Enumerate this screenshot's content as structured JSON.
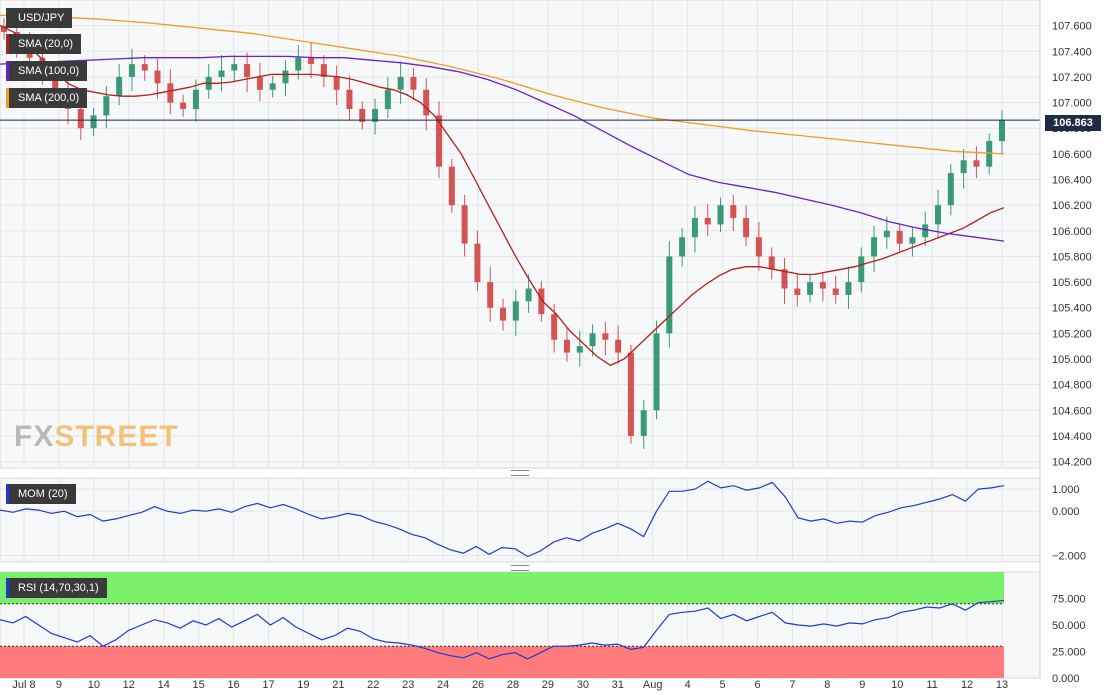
{
  "logo": {
    "fx": "FX",
    "street": "STREET"
  },
  "main_panel": {
    "labels": [
      {
        "text": "USD/JPY",
        "color": "#3a3a3a"
      },
      {
        "text": "SMA (20,0)",
        "color": "#b32019"
      },
      {
        "text": "SMA (100,0)",
        "color": "#6a1fd1"
      },
      {
        "text": "SMA (200,0)",
        "color": "#f39c1f"
      }
    ],
    "current_price": "106.863"
  },
  "mom_panel": {
    "label": "MOM (20)",
    "color": "#1f3ad1"
  },
  "rsi_panel": {
    "label": "RSI (14,70,30,1)",
    "color": "#1f3ad1"
  },
  "chart_data": [
    {
      "type": "candlestick",
      "title": "USD/JPY",
      "x_tick_labels": [
        "Jul 8",
        "9",
        "10",
        "12",
        "14",
        "15",
        "16",
        "17",
        "19",
        "21",
        "22",
        "23",
        "24",
        "26",
        "28",
        "29",
        "30",
        "31",
        "Aug",
        "4",
        "5",
        "6",
        "7",
        "8",
        "9",
        "10",
        "11",
        "12",
        "13"
      ],
      "y_tick_labels": [
        "107.600",
        "107.400",
        "107.200",
        "107.000",
        "106.800",
        "106.600",
        "106.400",
        "106.200",
        "106.000",
        "105.800",
        "105.600",
        "105.400",
        "105.200",
        "105.000",
        "104.800",
        "104.600",
        "104.400",
        "104.200"
      ],
      "ylim": [
        104.15,
        107.8
      ],
      "close_values": [
        107.55,
        107.45,
        107.35,
        107.25,
        107.1,
        106.95,
        106.8,
        106.9,
        107.05,
        107.2,
        107.3,
        107.25,
        107.15,
        107.0,
        106.95,
        107.1,
        107.2,
        107.25,
        107.3,
        107.2,
        107.1,
        107.15,
        107.25,
        107.35,
        107.3,
        107.2,
        107.1,
        106.95,
        106.85,
        106.95,
        107.1,
        107.2,
        107.1,
        106.9,
        106.5,
        106.2,
        105.9,
        105.6,
        105.4,
        105.3,
        105.45,
        105.55,
        105.35,
        105.15,
        105.05,
        105.1,
        105.2,
        105.15,
        105.05,
        104.4,
        104.6,
        105.2,
        105.8,
        105.95,
        106.1,
        106.05,
        106.2,
        106.1,
        105.95,
        105.8,
        105.7,
        105.55,
        105.5,
        105.6,
        105.55,
        105.5,
        105.6,
        105.8,
        105.95,
        106.0,
        105.9,
        105.95,
        106.05,
        106.2,
        106.45,
        106.55,
        106.5,
        106.7,
        106.863
      ],
      "series": [
        {
          "name": "SMA (20,0)",
          "values": [
            107.6,
            107.55,
            107.45,
            107.35,
            107.25,
            107.15,
            107.1,
            107.08,
            107.06,
            107.05,
            107.05,
            107.06,
            107.08,
            107.1,
            107.12,
            107.15,
            107.15,
            107.16,
            107.18,
            107.2,
            107.22,
            107.22,
            107.22,
            107.22,
            107.21,
            107.2,
            107.18,
            107.15,
            107.12,
            107.1,
            107.06,
            107.0,
            106.9,
            106.75,
            106.6,
            106.4,
            106.2,
            106.0,
            105.8,
            105.62,
            105.45,
            105.35,
            105.22,
            105.12,
            105.02,
            104.95,
            105.0,
            105.1,
            105.2,
            105.3,
            105.4,
            105.5,
            105.58,
            105.65,
            105.7,
            105.72,
            105.72,
            105.7,
            105.68,
            105.66,
            105.66,
            105.68,
            105.7,
            105.72,
            105.75,
            105.78,
            105.82,
            105.86,
            105.9,
            105.94,
            105.98,
            106.02,
            106.08,
            106.14,
            106.18
          ]
        },
        {
          "name": "SMA (100,0)",
          "values": [
            107.3,
            107.31,
            107.32,
            107.33,
            107.34,
            107.35,
            107.35,
            107.35,
            107.36,
            107.36,
            107.36,
            107.35,
            107.35,
            107.33,
            107.31,
            107.28,
            107.24,
            107.18,
            107.1,
            107.0,
            106.9,
            106.78,
            106.66,
            106.55,
            106.44,
            106.38,
            106.34,
            106.3,
            106.25,
            106.2,
            106.14,
            106.07,
            106.02,
            105.98,
            105.95,
            105.92
          ]
        },
        {
          "name": "SMA (200,0)",
          "values": [
            107.68,
            107.67,
            107.65,
            107.62,
            107.58,
            107.54,
            107.48,
            107.42,
            107.36,
            107.28,
            107.18,
            107.06,
            106.96,
            106.88,
            106.83,
            106.78,
            106.74,
            106.7,
            106.66,
            106.62,
            106.6
          ]
        }
      ]
    },
    {
      "type": "line",
      "title": "MOM (20)",
      "y_tick_labels": [
        "1.000",
        "0.000",
        "−2.000"
      ],
      "ylim": [
        -2.3,
        1.5
      ],
      "series": [
        {
          "name": "MOM (20)",
          "values": [
            0.05,
            -0.05,
            0.1,
            0.05,
            -0.1,
            0.0,
            -0.25,
            -0.15,
            -0.45,
            -0.35,
            -0.2,
            -0.05,
            0.2,
            0.0,
            -0.1,
            0.05,
            0.0,
            0.1,
            -0.05,
            0.2,
            0.35,
            0.15,
            0.3,
            0.1,
            -0.15,
            -0.35,
            -0.25,
            -0.1,
            -0.2,
            -0.45,
            -0.6,
            -0.8,
            -1.05,
            -1.2,
            -1.5,
            -1.75,
            -1.9,
            -1.6,
            -1.95,
            -1.65,
            -1.7,
            -2.05,
            -1.8,
            -1.4,
            -1.2,
            -1.35,
            -1.0,
            -0.8,
            -0.55,
            -0.8,
            -1.15,
            0.0,
            0.9,
            0.9,
            1.0,
            1.35,
            1.05,
            1.15,
            0.95,
            1.05,
            1.3,
            0.65,
            -0.3,
            -0.45,
            -0.35,
            -0.55,
            -0.45,
            -0.5,
            -0.2,
            -0.05,
            0.15,
            0.25,
            0.4,
            0.55,
            0.75,
            0.45,
            1.0,
            1.05,
            1.15
          ]
        }
      ]
    },
    {
      "type": "line",
      "title": "RSI (14,70,30,1)",
      "y_tick_labels": [
        "75.000",
        "50.000",
        "25.000",
        "0.000"
      ],
      "ylim": [
        0,
        100
      ],
      "overbought": 70,
      "oversold": 30,
      "series": [
        {
          "name": "RSI (14,70,30,1)",
          "values": [
            55,
            52,
            58,
            50,
            42,
            38,
            34,
            40,
            30,
            36,
            45,
            50,
            55,
            52,
            47,
            54,
            50,
            56,
            48,
            54,
            60,
            50,
            57,
            48,
            42,
            36,
            40,
            47,
            44,
            37,
            34,
            33,
            31,
            28,
            24,
            21,
            19,
            24,
            18,
            22,
            24,
            18,
            24,
            30,
            30,
            31,
            33,
            31,
            32,
            27,
            29,
            45,
            60,
            62,
            63,
            66,
            56,
            60,
            54,
            58,
            62,
            52,
            50,
            49,
            51,
            49,
            52,
            51,
            55,
            57,
            62,
            64,
            67,
            66,
            70,
            64,
            71,
            72,
            73
          ]
        }
      ]
    }
  ]
}
